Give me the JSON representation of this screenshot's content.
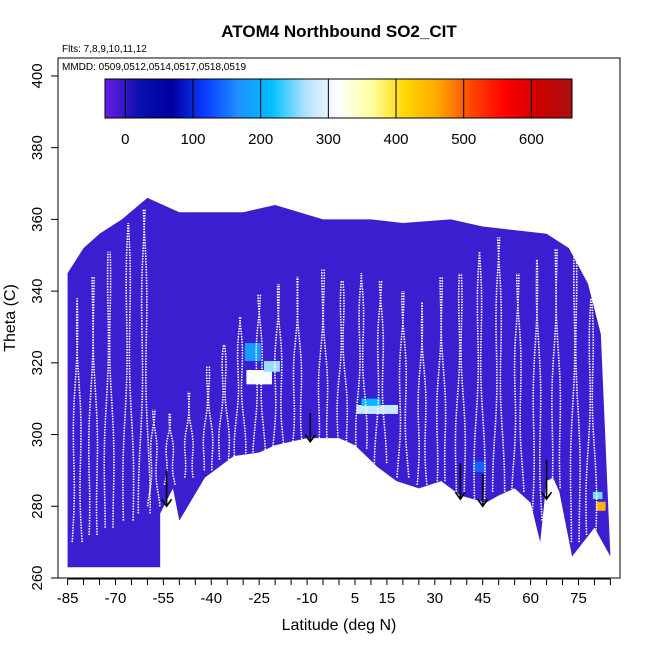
{
  "chart_data": {
    "type": "heatmap",
    "title": "ATOM4 Northbound SO2_CIT",
    "xlabel": "Latitude (deg N)",
    "ylabel": "Theta (C)",
    "flights_note": "Flts: 7,8,9,10,11,12",
    "dates_note": "MMDD: 0509,0512,0514,0517,0518,0519",
    "xlim": [
      -88,
      88
    ],
    "ylim": [
      260,
      405
    ],
    "x_ticks": [
      -85,
      -70,
      -55,
      -40,
      -25,
      -10,
      5,
      15,
      30,
      45,
      60,
      75
    ],
    "y_ticks": [
      260,
      280,
      300,
      320,
      340,
      360,
      380,
      400
    ],
    "colorbar": {
      "range": [
        -30,
        660
      ],
      "ticks": [
        0,
        100,
        200,
        300,
        400,
        500,
        600
      ],
      "colors": [
        "#6a1ee6",
        "#0a10b0",
        "#0000a0",
        "#0b3cff",
        "#1e90ff",
        "#00bfff",
        "#b0e0ff",
        "#ffffff",
        "#ffffa0",
        "#ffd700",
        "#ffa500",
        "#ff4500",
        "#ff0000",
        "#cc0000",
        "#aa1010"
      ]
    },
    "surface_boundary": [
      [
        -56,
        278
      ],
      [
        -52,
        285
      ],
      [
        -50,
        276
      ],
      [
        -42,
        288
      ],
      [
        -33,
        294
      ],
      [
        -25,
        295
      ],
      [
        -20,
        297
      ],
      [
        -10,
        299
      ],
      [
        0,
        299
      ],
      [
        5,
        297
      ],
      [
        12,
        291
      ],
      [
        18,
        287
      ],
      [
        25,
        285
      ],
      [
        32,
        287
      ],
      [
        38,
        283
      ],
      [
        46,
        281
      ],
      [
        50,
        283
      ],
      [
        55,
        285
      ],
      [
        60,
        281
      ],
      [
        63,
        270
      ],
      [
        65,
        287
      ],
      [
        67,
        288
      ],
      [
        69,
        284
      ],
      [
        73,
        266
      ],
      [
        80,
        274
      ],
      [
        85,
        266
      ]
    ],
    "upper_boundary": [
      [
        -85,
        345
      ],
      [
        -80,
        352
      ],
      [
        -75,
        356
      ],
      [
        -68,
        360
      ],
      [
        -60,
        366
      ],
      [
        -50,
        362
      ],
      [
        -30,
        362
      ],
      [
        -20,
        364
      ],
      [
        -5,
        360
      ],
      [
        10,
        360
      ],
      [
        20,
        359
      ],
      [
        35,
        360
      ],
      [
        45,
        358
      ],
      [
        55,
        357
      ],
      [
        65,
        356
      ],
      [
        72,
        352
      ],
      [
        78,
        342
      ],
      [
        82,
        328
      ]
    ],
    "enhancements": [
      {
        "lat": -25,
        "theta": 316,
        "value": 310,
        "w": 8,
        "h": 4
      },
      {
        "lat": -27,
        "theta": 323,
        "value": 180,
        "w": 5,
        "h": 5
      },
      {
        "lat": -21,
        "theta": 319,
        "value": 260,
        "w": 5,
        "h": 3
      },
      {
        "lat": 12,
        "theta": 307,
        "value": 280,
        "w": 13,
        "h": 2.5
      },
      {
        "lat": 10,
        "theta": 309,
        "value": 210,
        "w": 6,
        "h": 2
      },
      {
        "lat": 44,
        "theta": 291,
        "value": 140,
        "w": 4,
        "h": 3
      },
      {
        "lat": 82,
        "theta": 280,
        "value": 450,
        "w": 3,
        "h": 2.5
      },
      {
        "lat": 81,
        "theta": 283,
        "value": 250,
        "w": 3,
        "h": 2
      }
    ],
    "flight_arrows": [
      {
        "lat": -54,
        "theta_top": 290,
        "theta_bottom": 280
      },
      {
        "lat": -9,
        "theta_top": 306,
        "theta_bottom": 298
      },
      {
        "lat": 38,
        "theta_top": 292,
        "theta_bottom": 282
      },
      {
        "lat": 45,
        "theta_top": 289,
        "theta_bottom": 280
      },
      {
        "lat": 65,
        "theta_top": 293,
        "theta_bottom": 282
      }
    ],
    "profiles": [
      {
        "lat": -82,
        "theta_min": 270,
        "theta_max": 338
      },
      {
        "lat": -77,
        "theta_min": 272,
        "theta_max": 344
      },
      {
        "lat": -72,
        "theta_min": 274,
        "theta_max": 351
      },
      {
        "lat": -66,
        "theta_min": 276,
        "theta_max": 359
      },
      {
        "lat": -61,
        "theta_min": 278,
        "theta_max": 363
      },
      {
        "lat": -58,
        "theta_min": 280,
        "theta_max": 307
      },
      {
        "lat": -53,
        "theta_min": 286,
        "theta_max": 306
      },
      {
        "lat": -47,
        "theta_min": 288,
        "theta_max": 312
      },
      {
        "lat": -41,
        "theta_min": 290,
        "theta_max": 319
      },
      {
        "lat": -36,
        "theta_min": 293,
        "theta_max": 325
      },
      {
        "lat": -31,
        "theta_min": 294,
        "theta_max": 333
      },
      {
        "lat": -25,
        "theta_min": 295,
        "theta_max": 339
      },
      {
        "lat": -19,
        "theta_min": 296,
        "theta_max": 342
      },
      {
        "lat": -13,
        "theta_min": 298,
        "theta_max": 344
      },
      {
        "lat": -5,
        "theta_min": 299,
        "theta_max": 346
      },
      {
        "lat": 1,
        "theta_min": 298,
        "theta_max": 343
      },
      {
        "lat": 7,
        "theta_min": 296,
        "theta_max": 345
      },
      {
        "lat": 13,
        "theta_min": 292,
        "theta_max": 343
      },
      {
        "lat": 20,
        "theta_min": 288,
        "theta_max": 340
      },
      {
        "lat": 26,
        "theta_min": 286,
        "theta_max": 337
      },
      {
        "lat": 32,
        "theta_min": 287,
        "theta_max": 344
      },
      {
        "lat": 38,
        "theta_min": 284,
        "theta_max": 345
      },
      {
        "lat": 44,
        "theta_min": 282,
        "theta_max": 351
      },
      {
        "lat": 50,
        "theta_min": 284,
        "theta_max": 355
      },
      {
        "lat": 56,
        "theta_min": 284,
        "theta_max": 345
      },
      {
        "lat": 62,
        "theta_min": 276,
        "theta_max": 349
      },
      {
        "lat": 68,
        "theta_min": 285,
        "theta_max": 352
      },
      {
        "lat": 74,
        "theta_min": 270,
        "theta_max": 350
      },
      {
        "lat": 79,
        "theta_min": 272,
        "theta_max": 338
      }
    ],
    "legend_position": "top",
    "grid": false
  }
}
